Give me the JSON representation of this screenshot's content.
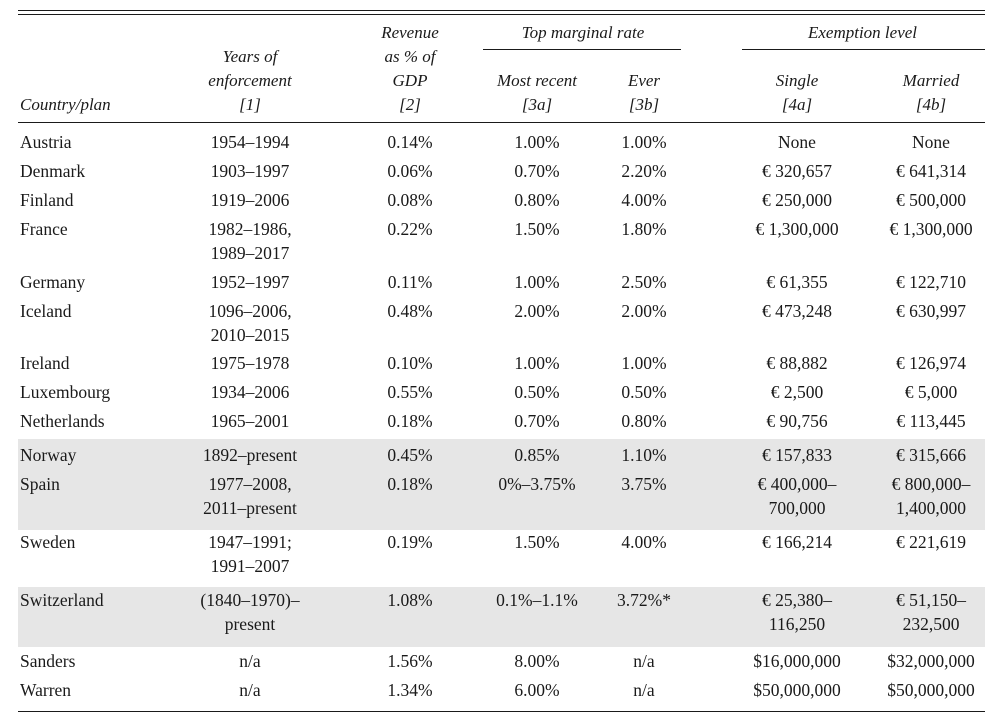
{
  "header": {
    "country": "Country/plan",
    "years": [
      "Years of",
      "enforcement",
      "[1]"
    ],
    "revenue": [
      "Revenue",
      "as % of",
      "GDP",
      "[2]"
    ],
    "top_group": "Top marginal rate",
    "most_recent": [
      "Most recent",
      "[3a]"
    ],
    "ever": [
      "Ever",
      "[3b]"
    ],
    "exempt_group": "Exemption level",
    "single": [
      "Single",
      "[4a]"
    ],
    "married": [
      "Married",
      "[4b]"
    ]
  },
  "rows": [
    {
      "country": "Austria",
      "years": [
        "1954–1994"
      ],
      "revenue": "0.14%",
      "recent": "1.00%",
      "ever": "1.00%",
      "single": [
        "None"
      ],
      "married": [
        "None"
      ],
      "shaded": false
    },
    {
      "country": "Denmark",
      "years": [
        "1903–1997"
      ],
      "revenue": "0.06%",
      "recent": "0.70%",
      "ever": "2.20%",
      "single": [
        "€ 320,657"
      ],
      "married": [
        "€ 641,314"
      ],
      "shaded": false
    },
    {
      "country": "Finland",
      "years": [
        "1919–2006"
      ],
      "revenue": "0.08%",
      "recent": "0.80%",
      "ever": "4.00%",
      "single": [
        "€ 250,000"
      ],
      "married": [
        "€ 500,000"
      ],
      "shaded": false
    },
    {
      "country": "France",
      "years": [
        "1982–1986,",
        "1989–2017"
      ],
      "revenue": "0.22%",
      "recent": "1.50%",
      "ever": "1.80%",
      "single": [
        "€ 1,300,000"
      ],
      "married": [
        "€ 1,300,000"
      ],
      "shaded": false
    },
    {
      "country": "Germany",
      "years": [
        "1952–1997"
      ],
      "revenue": "0.11%",
      "recent": "1.00%",
      "ever": "2.50%",
      "single": [
        "€ 61,355"
      ],
      "married": [
        "€ 122,710"
      ],
      "shaded": false
    },
    {
      "country": "Iceland",
      "years": [
        "1096–2006,",
        "2010–2015"
      ],
      "revenue": "0.48%",
      "recent": "2.00%",
      "ever": "2.00%",
      "single": [
        "€ 473,248"
      ],
      "married": [
        "€ 630,997"
      ],
      "shaded": false
    },
    {
      "country": "Ireland",
      "years": [
        "1975–1978"
      ],
      "revenue": "0.10%",
      "recent": "1.00%",
      "ever": "1.00%",
      "single": [
        "€ 88,882"
      ],
      "married": [
        "€ 126,974"
      ],
      "shaded": false
    },
    {
      "country": "Luxembourg",
      "years": [
        "1934–2006"
      ],
      "revenue": "0.55%",
      "recent": "0.50%",
      "ever": "0.50%",
      "single": [
        "€ 2,500"
      ],
      "married": [
        "€ 5,000"
      ],
      "shaded": false
    },
    {
      "country": "Netherlands",
      "years": [
        "1965–2001"
      ],
      "revenue": "0.18%",
      "recent": "0.70%",
      "ever": "0.80%",
      "single": [
        "€ 90,756"
      ],
      "married": [
        "€ 113,445"
      ],
      "shaded": false
    },
    {
      "country": "Norway",
      "years": [
        "1892–present"
      ],
      "revenue": "0.45%",
      "recent": "0.85%",
      "ever": "1.10%",
      "single": [
        "€ 157,833"
      ],
      "married": [
        "€ 315,666"
      ],
      "shaded": true
    },
    {
      "country": "Spain",
      "years": [
        "1977–2008,",
        "2011–present"
      ],
      "revenue": "0.18%",
      "recent": "0%–3.75%",
      "ever": "3.75%",
      "single": [
        "€ 400,000–",
        "700,000"
      ],
      "married": [
        "€ 800,000–",
        "1,400,000"
      ],
      "shaded": true
    },
    {
      "country": "Sweden",
      "years": [
        "1947–1991;",
        "1991–2007"
      ],
      "revenue": "0.19%",
      "recent": "1.50%",
      "ever": "4.00%",
      "single": [
        "€ 166,214"
      ],
      "married": [
        "€ 221,619"
      ],
      "shaded": false
    },
    {
      "country": "Switzerland",
      "years": [
        "(1840–1970)–",
        "present"
      ],
      "revenue": "1.08%",
      "recent": "0.1%–1.1%",
      "ever": "3.72%*",
      "single": [
        "€ 25,380–",
        "116,250"
      ],
      "married": [
        "€ 51,150–",
        "232,500"
      ],
      "shaded": true
    },
    {
      "country": "Sanders",
      "years": [
        "n/a"
      ],
      "revenue": "1.56%",
      "recent": "8.00%",
      "ever": "n/a",
      "single": [
        "$16,000,000"
      ],
      "married": [
        "$32,000,000"
      ],
      "shaded": false
    },
    {
      "country": "Warren",
      "years": [
        "n/a"
      ],
      "revenue": "1.34%",
      "recent": "6.00%",
      "ever": "n/a",
      "single": [
        "$50,000,000"
      ],
      "married": [
        "$50,000,000"
      ],
      "shaded": false
    }
  ]
}
